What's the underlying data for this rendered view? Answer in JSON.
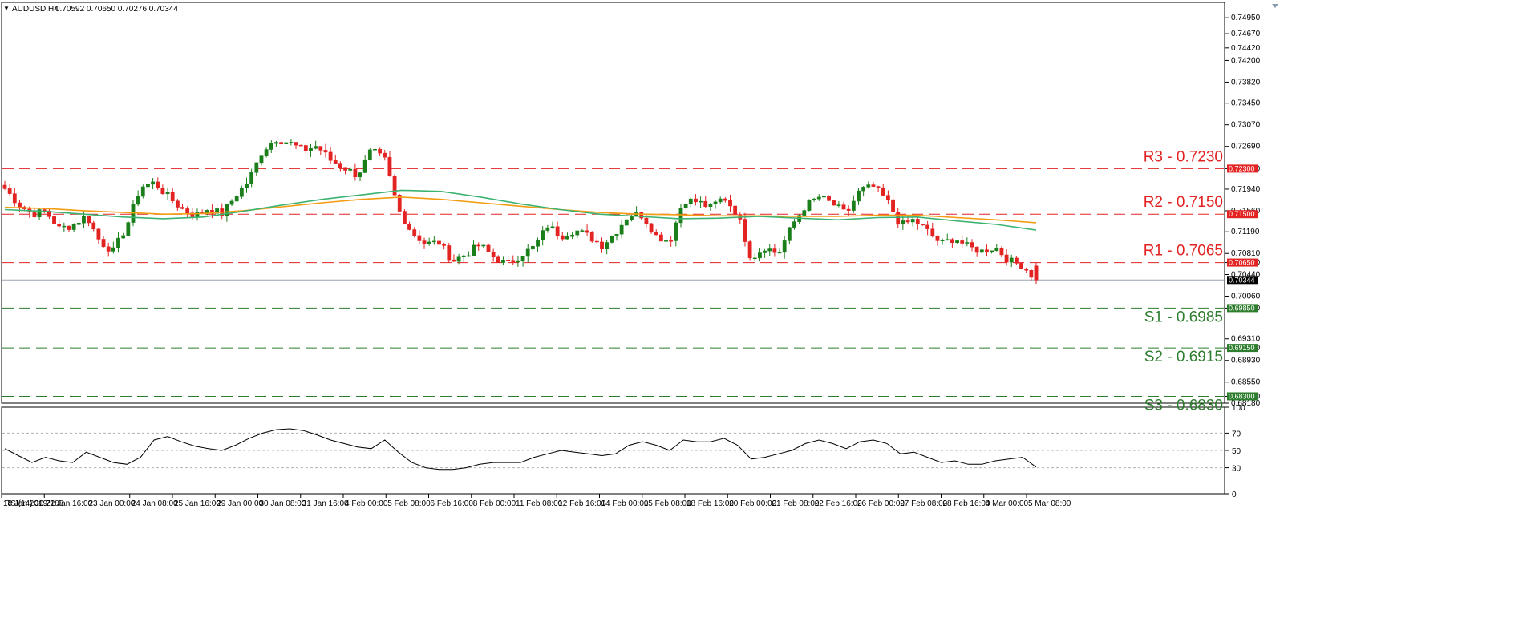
{
  "chart_data": [
    {
      "type": "candlestick",
      "title": "AUDUSD,H4",
      "ohlc_readout": "0.70592 0.70650 0.70276 0.70344",
      "current_price": "0.70344",
      "ylim": [
        0.6818,
        0.7522
      ],
      "y_ticks": [
        "0.74950",
        "0.74670",
        "0.74420",
        "0.74200",
        "0.73820",
        "0.73450",
        "0.73070",
        "0.72690",
        "0.72300",
        "0.71940",
        "0.71560",
        "0.71190",
        "0.70810",
        "0.70650",
        "0.70440",
        "0.70060",
        "0.69850",
        "0.69310",
        "0.69150",
        "0.68930",
        "0.68550",
        "0.68300",
        "0.68180"
      ],
      "x_ticks": [
        "18 Jan 2019",
        "21 Jan 16:00",
        "23 Jan 00:00",
        "24 Jan 08:00",
        "25 Jan 16:00",
        "29 Jan 00:00",
        "30 Jan 08:00",
        "31 Jan 16:00",
        "4 Feb 00:00",
        "5 Feb 08:00",
        "6 Feb 16:00",
        "8 Feb 00:00",
        "11 Feb 08:00",
        "12 Feb 16:00",
        "14 Feb 00:00",
        "15 Feb 08:00",
        "18 Feb 16:00",
        "20 Feb 00:00",
        "21 Feb 08:00",
        "22 Feb 16:00",
        "26 Feb 00:00",
        "27 Feb 08:00",
        "28 Feb 16:00",
        "4 Mar 00:00",
        "5 Mar 08:00"
      ],
      "colors": {
        "bull": "#1a7f1a",
        "bear": "#e32222",
        "resistance": "#e32222",
        "support": "#2e7d2e",
        "sma_fast": "#3cb371",
        "sma_slow": "#f39c12"
      },
      "levels": [
        {
          "name": "R3",
          "label": "R3 - 0.7230",
          "value": 0.723,
          "tag": "0.72300",
          "kind": "resistance"
        },
        {
          "name": "R2",
          "label": "R2 - 0.7150",
          "value": 0.715,
          "tag": "0.71500",
          "kind": "resistance"
        },
        {
          "name": "R1",
          "label": "R1 - 0.7065",
          "value": 0.7065,
          "tag": "0.70650",
          "kind": "resistance"
        },
        {
          "name": "S1",
          "label": "S1 - 0.6985",
          "value": 0.6985,
          "tag": "0.69850",
          "kind": "support"
        },
        {
          "name": "S2",
          "label": "S2 - 0.6915",
          "value": 0.6915,
          "tag": "0.69150",
          "kind": "support"
        },
        {
          "name": "S3",
          "label": "S3 - 0.6830",
          "value": 0.683,
          "tag": "0.68300",
          "kind": "support"
        }
      ],
      "close_anchors": [
        0.7195,
        0.7168,
        0.715,
        0.7155,
        0.7125,
        0.713,
        0.7148,
        0.7102,
        0.7085,
        0.713,
        0.7198,
        0.7205,
        0.7182,
        0.716,
        0.7148,
        0.716,
        0.715,
        0.7182,
        0.721,
        0.7262,
        0.7282,
        0.7275,
        0.7262,
        0.727,
        0.7245,
        0.7232,
        0.7218,
        0.7262,
        0.7245,
        0.7158,
        0.7118,
        0.7098,
        0.71,
        0.7068,
        0.708,
        0.7096,
        0.7075,
        0.7062,
        0.7078,
        0.7092,
        0.713,
        0.7112,
        0.7122,
        0.7112,
        0.7095,
        0.7118,
        0.715,
        0.7148,
        0.7112,
        0.7102,
        0.7175,
        0.7172,
        0.7162,
        0.718,
        0.715,
        0.7072,
        0.7092,
        0.708,
        0.713,
        0.7165,
        0.718,
        0.7168,
        0.715,
        0.7192,
        0.7198,
        0.7175,
        0.713,
        0.714,
        0.712,
        0.7098,
        0.7108,
        0.7092,
        0.7085,
        0.7092,
        0.7068,
        0.706,
        0.7034
      ],
      "sma_fast": [
        0.7158,
        0.7155,
        0.715,
        0.7145,
        0.7142,
        0.7145,
        0.7155,
        0.7166,
        0.7176,
        0.7184,
        0.7192,
        0.719,
        0.718,
        0.7168,
        0.7158,
        0.715,
        0.7146,
        0.7142,
        0.7143,
        0.7146,
        0.7143,
        0.714,
        0.7144,
        0.7145,
        0.7138,
        0.7132,
        0.7122
      ],
      "sma_slow": [
        0.7162,
        0.716,
        0.7156,
        0.7153,
        0.715,
        0.7151,
        0.7156,
        0.7163,
        0.717,
        0.7176,
        0.718,
        0.7176,
        0.717,
        0.7164,
        0.7158,
        0.7153,
        0.715,
        0.7149,
        0.7147,
        0.7147,
        0.7146,
        0.7146,
        0.7148,
        0.7148,
        0.7144,
        0.714,
        0.7135
      ]
    },
    {
      "type": "line",
      "title": "RSI(14) 30.7288",
      "ylim": [
        0,
        100
      ],
      "y_ticks": [
        "100",
        "70",
        "50",
        "30",
        "0"
      ],
      "guide_levels": [
        70,
        50,
        30
      ],
      "values": [
        52,
        44,
        36,
        42,
        38,
        36,
        48,
        42,
        36,
        34,
        42,
        62,
        66,
        60,
        55,
        52,
        50,
        56,
        64,
        70,
        74,
        75,
        73,
        68,
        62,
        58,
        54,
        52,
        62,
        48,
        36,
        30,
        28,
        28,
        30,
        34,
        36,
        36,
        36,
        42,
        46,
        50,
        48,
        46,
        44,
        46,
        56,
        60,
        56,
        50,
        62,
        60,
        60,
        64,
        56,
        40,
        42,
        46,
        50,
        58,
        62,
        58,
        52,
        60,
        62,
        58,
        46,
        48,
        42,
        36,
        38,
        34,
        34,
        38,
        40,
        42,
        30.7288
      ]
    }
  ]
}
